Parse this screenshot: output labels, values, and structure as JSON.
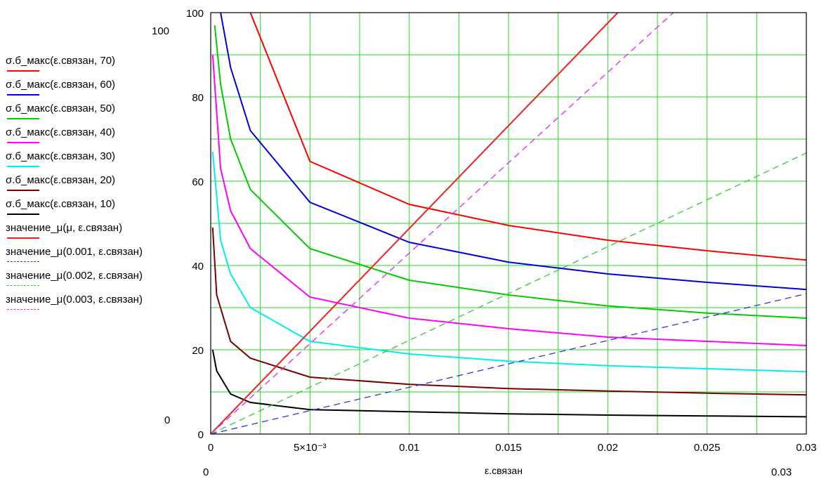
{
  "chart_data": {
    "type": "line",
    "title": "",
    "xlabel": "ε.связан",
    "ylabel": "",
    "xlim": [
      0,
      0.03
    ],
    "ylim": [
      0,
      100
    ],
    "grid": true,
    "legend_position": "left",
    "x_ticks": [
      {
        "value": 0,
        "label": "0"
      },
      {
        "value": 0.005,
        "label": "5×10⁻³"
      },
      {
        "value": 0.01,
        "label": "0.01"
      },
      {
        "value": 0.015,
        "label": "0.015"
      },
      {
        "value": 0.02,
        "label": "0.02"
      },
      {
        "value": 0.025,
        "label": "0.025"
      },
      {
        "value": 0.03,
        "label": "0.03"
      }
    ],
    "y_ticks": [
      {
        "value": 0,
        "label": "0"
      },
      {
        "value": 20,
        "label": "20"
      },
      {
        "value": 40,
        "label": "40"
      },
      {
        "value": 60,
        "label": "60"
      },
      {
        "value": 80,
        "label": "80"
      },
      {
        "value": 100,
        "label": "100"
      }
    ],
    "range_labels": {
      "y_max": "100",
      "y_min": "0",
      "x_min": "0",
      "x_max": "0.03"
    },
    "series": [
      {
        "name": "σ.б_макс(ε.связан, 70)",
        "color": "#ff0000",
        "style": "solid",
        "points": [
          [
            0.002,
            100
          ],
          [
            0.005,
            64.7
          ],
          [
            0.01,
            54.5
          ],
          [
            0.015,
            49.5
          ],
          [
            0.02,
            46
          ],
          [
            0.025,
            43.5
          ],
          [
            0.03,
            41.3
          ]
        ]
      },
      {
        "name": "σ.б_макс(ε.связан, 60)",
        "color": "#0000dd",
        "style": "solid",
        "points": [
          [
            0.0005,
            100
          ],
          [
            0.001,
            87
          ],
          [
            0.002,
            72
          ],
          [
            0.005,
            55
          ],
          [
            0.01,
            45.5
          ],
          [
            0.015,
            40.8
          ],
          [
            0.02,
            38
          ],
          [
            0.025,
            36
          ],
          [
            0.03,
            34.3
          ]
        ]
      },
      {
        "name": "σ.б_макс(ε.связан, 50)",
        "color": "#00cc00",
        "style": "solid",
        "points": [
          [
            0.0002,
            97
          ],
          [
            0.0005,
            83
          ],
          [
            0.001,
            70
          ],
          [
            0.002,
            58
          ],
          [
            0.005,
            44
          ],
          [
            0.01,
            36.5
          ],
          [
            0.015,
            33
          ],
          [
            0.02,
            30.4
          ],
          [
            0.025,
            28.7
          ],
          [
            0.03,
            27.5
          ]
        ]
      },
      {
        "name": "σ.б_макс(ε.связан, 40)",
        "color": "#ff00ff",
        "style": "solid",
        "points": [
          [
            0.0001,
            90
          ],
          [
            0.0005,
            63
          ],
          [
            0.001,
            53
          ],
          [
            0.002,
            44
          ],
          [
            0.005,
            32.5
          ],
          [
            0.01,
            27.5
          ],
          [
            0.015,
            25
          ],
          [
            0.02,
            23
          ],
          [
            0.025,
            22
          ],
          [
            0.03,
            21
          ]
        ]
      },
      {
        "name": "σ.б_макс(ε.связан, 30)",
        "color": "#00eeee",
        "style": "solid",
        "points": [
          [
            0.0001,
            67
          ],
          [
            0.0005,
            46
          ],
          [
            0.001,
            38
          ],
          [
            0.002,
            30
          ],
          [
            0.005,
            22
          ],
          [
            0.01,
            19
          ],
          [
            0.015,
            17.3
          ],
          [
            0.02,
            16.2
          ],
          [
            0.025,
            15.5
          ],
          [
            0.03,
            14.8
          ]
        ]
      },
      {
        "name": "σ.б_макс(ε.связан, 20)",
        "color": "#770000",
        "style": "solid",
        "points": [
          [
            0.0001,
            49
          ],
          [
            0.0003,
            33
          ],
          [
            0.001,
            22
          ],
          [
            0.002,
            18
          ],
          [
            0.005,
            13.5
          ],
          [
            0.01,
            11.8
          ],
          [
            0.015,
            10.8
          ],
          [
            0.02,
            10.2
          ],
          [
            0.025,
            9.7
          ],
          [
            0.03,
            9.3
          ]
        ]
      },
      {
        "name": "σ.б_макс(ε.связан, 10)",
        "color": "#000000",
        "style": "solid",
        "points": [
          [
            0.0001,
            20
          ],
          [
            0.0003,
            15
          ],
          [
            0.001,
            9.5
          ],
          [
            0.002,
            7.5
          ],
          [
            0.005,
            5.8
          ],
          [
            0.01,
            5.3
          ],
          [
            0.015,
            4.8
          ],
          [
            0.02,
            4.5
          ],
          [
            0.025,
            4.3
          ],
          [
            0.03,
            4.1
          ]
        ]
      },
      {
        "name": "значение_μ(μ, ε.связан)",
        "color": "#ee2222",
        "style": "solid",
        "points": [
          [
            0,
            0
          ],
          [
            0.0205,
            100
          ]
        ]
      },
      {
        "name": "значение_μ(0.001, ε.связан)",
        "color": "#3333ee",
        "style": "dashed",
        "points": [
          [
            0,
            0
          ],
          [
            0.03,
            33.3
          ]
        ]
      },
      {
        "name": "значение_μ(0.002, ε.связан)",
        "color": "#33cc33",
        "style": "dashed",
        "points": [
          [
            0,
            0
          ],
          [
            0.03,
            66.7
          ]
        ]
      },
      {
        "name": "значение_μ(0.003, ε.связан)",
        "color": "#ee22ee",
        "style": "dashed",
        "points": [
          [
            0,
            0
          ],
          [
            0.0233,
            100
          ]
        ]
      }
    ]
  }
}
